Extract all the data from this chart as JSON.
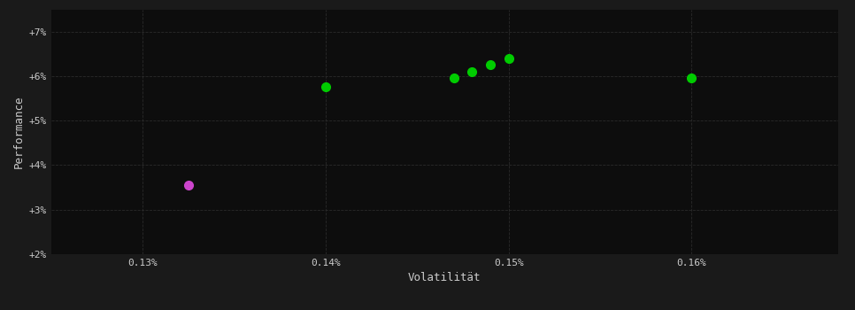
{
  "background_color": "#1a1a1a",
  "plot_bg_color": "#0d0d0d",
  "grid_color": "#2a2a2a",
  "text_color": "#cccccc",
  "xlabel": "Volatilität",
  "ylabel": "Performance",
  "xlim": [
    0.00125,
    0.00168
  ],
  "ylim": [
    0.02,
    0.075
  ],
  "xticks": [
    0.0013,
    0.0014,
    0.0015,
    0.0016
  ],
  "xtick_labels": [
    "0.13%",
    "0.14%",
    "0.15%",
    "0.16%"
  ],
  "yticks": [
    0.02,
    0.03,
    0.04,
    0.05,
    0.06,
    0.07
  ],
  "ytick_labels": [
    "+2%",
    "+3%",
    "+4%",
    "+5%",
    "+6%",
    "+7%"
  ],
  "green_points": [
    [
      0.0014,
      0.0575
    ],
    [
      0.00147,
      0.0595
    ],
    [
      0.00148,
      0.061
    ],
    [
      0.00149,
      0.0625
    ],
    [
      0.0015,
      0.064
    ],
    [
      0.0016,
      0.0595
    ]
  ],
  "purple_points": [
    [
      0.001325,
      0.0355
    ]
  ],
  "green_color": "#00cc00",
  "purple_color": "#cc44cc",
  "marker_size": 7
}
